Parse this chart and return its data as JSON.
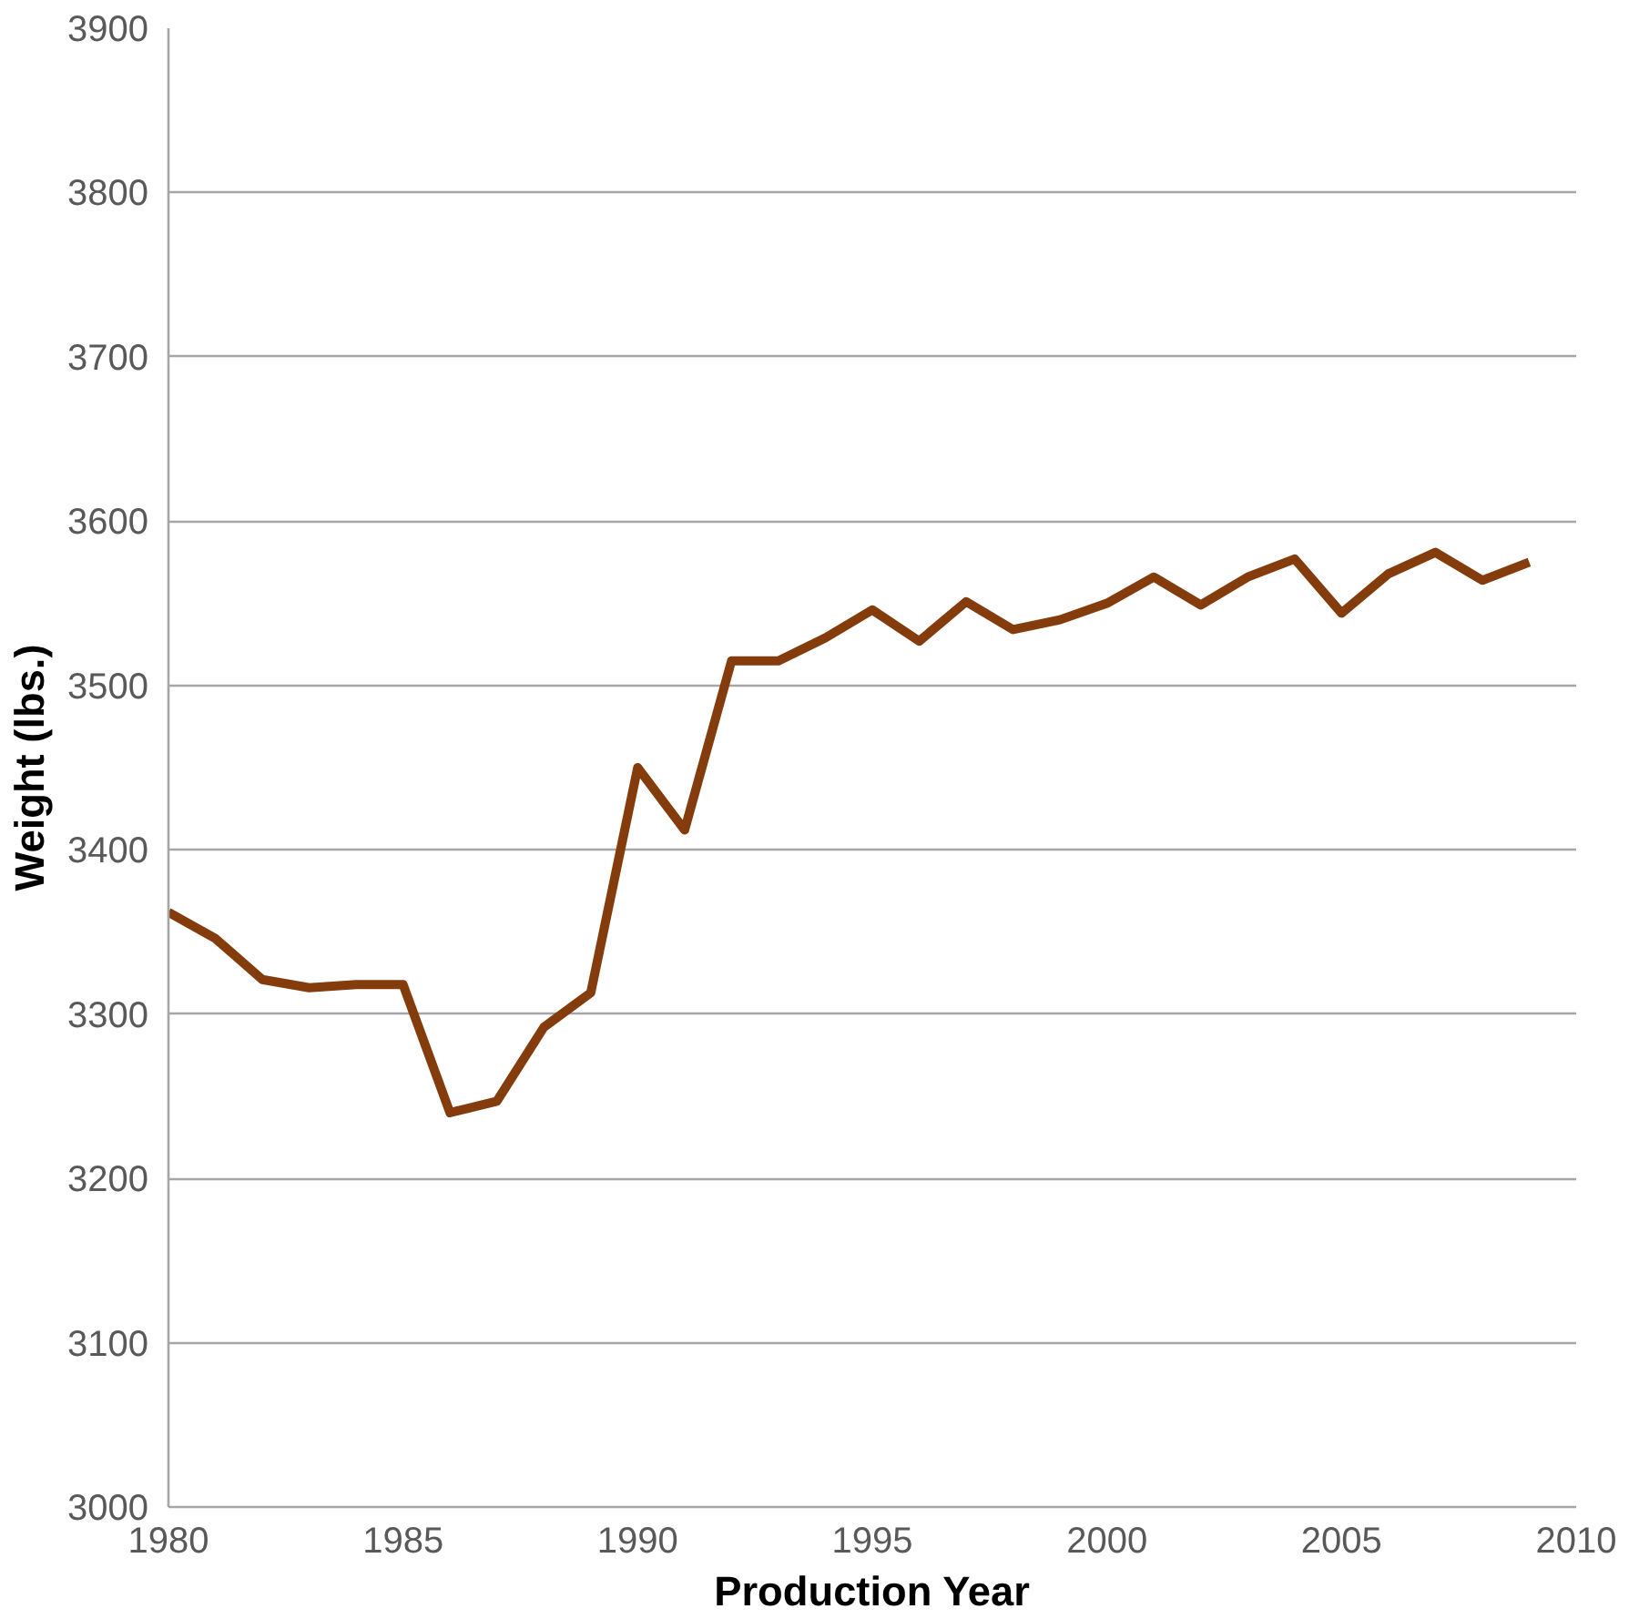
{
  "chart_data": {
    "type": "line",
    "xlabel": "Production Year",
    "ylabel": "Weight (lbs.)",
    "x": [
      1980,
      1981,
      1982,
      1983,
      1984,
      1985,
      1986,
      1987,
      1988,
      1989,
      1990,
      1991,
      1992,
      1993,
      1994,
      1995,
      1996,
      1997,
      1998,
      1999,
      2000,
      2001,
      2002,
      2003,
      2004,
      2005,
      2006,
      2007,
      2008,
      2009
    ],
    "series": [
      {
        "color": "#843c0c",
        "values": [
          3362,
          3346,
          3321,
          3316,
          3318,
          3318,
          3240,
          3247,
          3292,
          3313,
          3450,
          3412,
          3515,
          3515,
          3529,
          3546,
          3527,
          3551,
          3534,
          3540,
          3550,
          3566,
          3549,
          3566,
          3577,
          3544,
          3568,
          3581,
          3564,
          3575
        ]
      }
    ],
    "xlim": [
      1980,
      2010
    ],
    "xticks": [
      1980,
      1985,
      1990,
      1995,
      2000,
      2005,
      2010
    ],
    "ylim": [
      3000,
      3900
    ],
    "yticks": [
      3000,
      3100,
      3200,
      3300,
      3400,
      3500,
      3600,
      3700,
      3800,
      3900
    ],
    "grid": "y",
    "marker": "none",
    "line_style": "solid"
  }
}
